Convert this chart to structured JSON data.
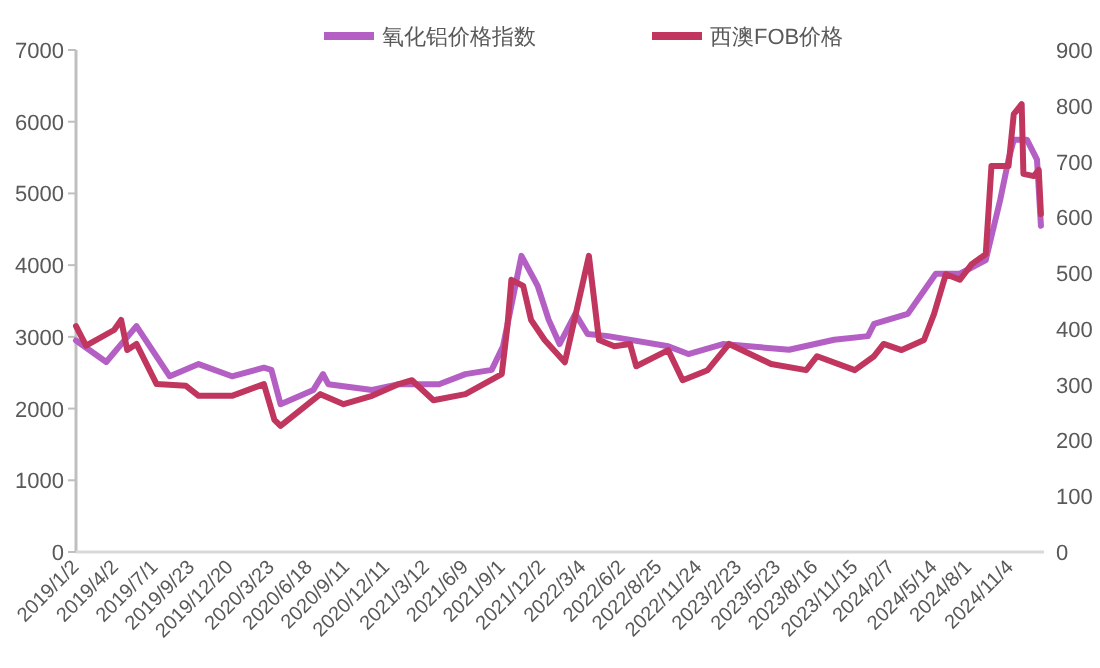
{
  "chart_data": {
    "type": "line",
    "legend": "top",
    "grid": false,
    "xlim": [
      "2019-01-02",
      "2025-01-20"
    ],
    "xticks": [
      {
        "value": "2019-01-02",
        "label": "2019/1/2"
      },
      {
        "value": "2019-04-02",
        "label": "2019/4/2"
      },
      {
        "value": "2019-07-01",
        "label": "2019/7/1"
      },
      {
        "value": "2019-09-23",
        "label": "2019/9/23"
      },
      {
        "value": "2019-12-20",
        "label": "2019/12/20"
      },
      {
        "value": "2020-03-23",
        "label": "2020/3/23"
      },
      {
        "value": "2020-06-18",
        "label": "2020/6/18"
      },
      {
        "value": "2020-09-11",
        "label": "2020/9/11"
      },
      {
        "value": "2020-12-11",
        "label": "2020/12/11"
      },
      {
        "value": "2021-03-12",
        "label": "2021/3/12"
      },
      {
        "value": "2021-06-09",
        "label": "2021/6/9"
      },
      {
        "value": "2021-09-01",
        "label": "2021/9/1"
      },
      {
        "value": "2021-12-02",
        "label": "2021/12/2"
      },
      {
        "value": "2022-03-04",
        "label": "2022/3/4"
      },
      {
        "value": "2022-06-02",
        "label": "2022/6/2"
      },
      {
        "value": "2022-08-25",
        "label": "2022/8/25"
      },
      {
        "value": "2022-11-24",
        "label": "2022/11/24"
      },
      {
        "value": "2023-02-23",
        "label": "2023/2/23"
      },
      {
        "value": "2023-05-23",
        "label": "2023/5/23"
      },
      {
        "value": "2023-08-16",
        "label": "2023/8/16"
      },
      {
        "value": "2023-11-15",
        "label": "2023/11/15"
      },
      {
        "value": "2024-02-07",
        "label": "2024/2/7"
      },
      {
        "value": "2024-05-14",
        "label": "2024/5/14"
      },
      {
        "value": "2024-08-01",
        "label": "2024/8/1"
      },
      {
        "value": "2024-11-04",
        "label": "2024/11/4"
      }
    ],
    "ylim": [
      0,
      7000
    ],
    "yticks": [
      0,
      1000,
      2000,
      3000,
      4000,
      5000,
      6000,
      7000
    ],
    "y2lim": [
      0,
      900
    ],
    "y2ticks": [
      0,
      100,
      200,
      300,
      400,
      500,
      600,
      700,
      800,
      900
    ],
    "series": [
      {
        "name": "氧化铝价格指数",
        "color": "#b35fc4",
        "x": [
          "2019-01-02",
          "2019-03-12",
          "2019-05-20",
          "2019-08-04",
          "2019-10-09",
          "2019-12-24",
          "2020-03-06",
          "2020-03-23",
          "2020-04-13",
          "2020-06-27",
          "2020-07-19",
          "2020-07-31",
          "2020-11-08",
          "2021-01-08",
          "2021-04-10",
          "2021-06-09",
          "2021-08-08",
          "2021-09-03",
          "2021-10-15",
          "2021-11-21",
          "2021-12-16",
          "2022-01-10",
          "2022-02-15",
          "2022-03-15",
          "2022-05-01",
          "2022-09-15",
          "2022-10-31",
          "2023-01-18",
          "2023-06-18",
          "2023-09-29",
          "2023-12-15",
          "2023-12-29",
          "2024-03-15",
          "2024-05-18",
          "2024-07-12",
          "2024-09-09",
          "2024-10-12",
          "2024-10-31",
          "2024-11-12",
          "2024-12-12",
          "2025-01-04",
          "2025-01-13"
        ],
        "values": [
          2950,
          2650,
          3150,
          2450,
          2620,
          2450,
          2570,
          2540,
          2060,
          2260,
          2480,
          2340,
          2260,
          2340,
          2340,
          2480,
          2540,
          2870,
          4130,
          3710,
          3240,
          2900,
          3320,
          3040,
          3010,
          2870,
          2760,
          2900,
          2820,
          2960,
          3010,
          3180,
          3320,
          3880,
          3880,
          4070,
          4910,
          5470,
          5750,
          5750,
          5470,
          4550
        ]
      },
      {
        "name": "西澳FOB价格",
        "color": "#c0365f",
        "axis": "y2",
        "x": [
          "2019-01-02",
          "2019-01-25",
          "2019-03-30",
          "2019-04-15",
          "2019-04-29",
          "2019-05-20",
          "2019-07-05",
          "2019-09-10",
          "2019-10-09",
          "2019-12-24",
          "2020-03-06",
          "2020-03-30",
          "2020-04-13",
          "2020-07-13",
          "2020-09-04",
          "2020-11-08",
          "2021-01-08",
          "2021-02-07",
          "2021-03-28",
          "2021-06-09",
          "2021-08-31",
          "2021-09-13",
          "2021-09-22",
          "2021-10-19",
          "2021-11-06",
          "2021-12-07",
          "2022-01-22",
          "2022-03-18",
          "2022-04-10",
          "2022-05-15",
          "2022-06-20",
          "2022-07-04",
          "2022-09-15",
          "2022-10-18",
          "2022-12-14",
          "2023-02-01",
          "2023-05-08",
          "2023-07-27",
          "2023-08-21",
          "2023-11-15",
          "2023-12-29",
          "2024-01-20",
          "2024-03-01",
          "2024-04-21",
          "2024-05-14",
          "2024-06-10",
          "2024-07-12",
          "2024-08-08",
          "2024-09-09",
          "2024-09-22",
          "2024-10-31",
          "2024-11-12",
          "2024-11-30",
          "2024-12-04",
          "2024-12-28",
          "2025-01-08",
          "2025-01-13"
        ],
        "values": [
          405,
          370,
          398,
          416,
          362,
          373,
          301,
          298,
          280,
          280,
          301,
          237,
          226,
          283,
          265,
          280,
          301,
          308,
          272,
          283,
          319,
          405,
          488,
          477,
          416,
          380,
          340,
          531,
          380,
          369,
          373,
          333,
          362,
          308,
          326,
          373,
          337,
          326,
          351,
          326,
          351,
          373,
          362,
          380,
          427,
          498,
          488,
          516,
          534,
          692,
          692,
          785,
          803,
          678,
          674,
          685,
          606
        ]
      }
    ]
  }
}
